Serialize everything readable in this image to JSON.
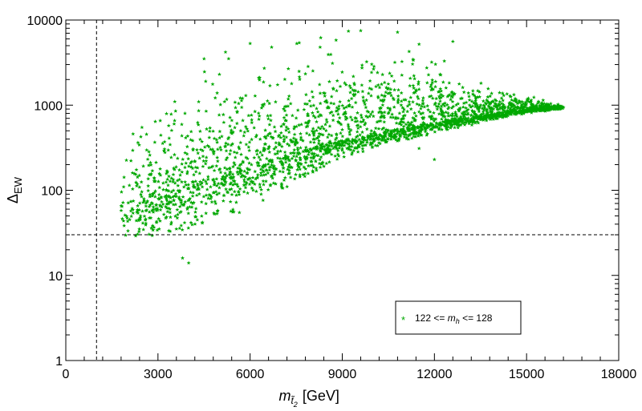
{
  "chart_data": {
    "type": "scatter",
    "title": "",
    "x_axis": {
      "label_main": "m",
      "label_sub": "t̃",
      "label_subsub": "2",
      "label_unit": "[GeV]",
      "range": [
        0,
        18000
      ],
      "ticks": [
        0,
        3000,
        6000,
        9000,
        12000,
        15000,
        18000
      ],
      "minor_step": 600
    },
    "y_axis": {
      "label_main": "Δ",
      "label_sub": "EW",
      "scale": "log",
      "range": [
        1,
        10000
      ],
      "ticks": [
        1,
        10,
        100,
        1000,
        10000
      ]
    },
    "reference_lines": {
      "vertical_x": 1000,
      "horizontal_y": 30,
      "style": "dashed"
    },
    "grid": false,
    "legend": {
      "position": "bottom-right",
      "marker": "*",
      "entries": [
        {
          "text_pre": "122 <= ",
          "text_var": "m",
          "text_sub": "h",
          "text_post": " <= 128"
        }
      ]
    },
    "series": [
      {
        "color": "#00a800",
        "marker": "star",
        "cloud": {
          "x_range": [
            1800,
            16200
          ],
          "lower_envelope": [
            [
              1800,
              22
            ],
            [
              2500,
              25
            ],
            [
              3000,
              32
            ],
            [
              4000,
              34
            ],
            [
              5000,
              45
            ],
            [
              6000,
              60
            ],
            [
              7000,
              100
            ],
            [
              8000,
              160
            ],
            [
              9000,
              240
            ],
            [
              10000,
              310
            ],
            [
              11000,
              380
            ],
            [
              12000,
              460
            ],
            [
              13000,
              560
            ],
            [
              14000,
              680
            ],
            [
              15000,
              800
            ],
            [
              16200,
              900
            ]
          ],
          "median": [
            [
              1800,
              60
            ],
            [
              2500,
              70
            ],
            [
              3000,
              80
            ],
            [
              4000,
              110
            ],
            [
              5000,
              150
            ],
            [
              6000,
              190
            ],
            [
              7000,
              250
            ],
            [
              8000,
              320
            ],
            [
              9000,
              390
            ],
            [
              10000,
              460
            ],
            [
              11000,
              540
            ],
            [
              12000,
              620
            ],
            [
              13000,
              700
            ],
            [
              14000,
              800
            ],
            [
              15000,
              880
            ],
            [
              16200,
              940
            ]
          ],
          "upper_envelope": [
            [
              1800,
              180
            ],
            [
              2200,
              800
            ],
            [
              2500,
              1800
            ],
            [
              3500,
              3500
            ],
            [
              4500,
              5500
            ],
            [
              6000,
              6000
            ],
            [
              8000,
              6500
            ],
            [
              9000,
              7500
            ],
            [
              10500,
              7500
            ],
            [
              12000,
              5000
            ],
            [
              13000,
              2800
            ],
            [
              14000,
              1800
            ],
            [
              15000,
              1400
            ],
            [
              16200,
              1000
            ]
          ],
          "sparse_outliers": [
            [
              4000,
              14
            ],
            [
              3800,
              16
            ],
            [
              4500,
              3500
            ],
            [
              5200,
              4200
            ],
            [
              6000,
              5300
            ],
            [
              6700,
              4800
            ],
            [
              7600,
              5400
            ],
            [
              8300,
              6200
            ],
            [
              8800,
              5800
            ],
            [
              9200,
              7400
            ],
            [
              9600,
              7500
            ],
            [
              10800,
              7200
            ],
            [
              11500,
              5200
            ],
            [
              12000,
              230
            ],
            [
              11500,
              310
            ],
            [
              12600,
              5600
            ]
          ]
        }
      }
    ]
  }
}
